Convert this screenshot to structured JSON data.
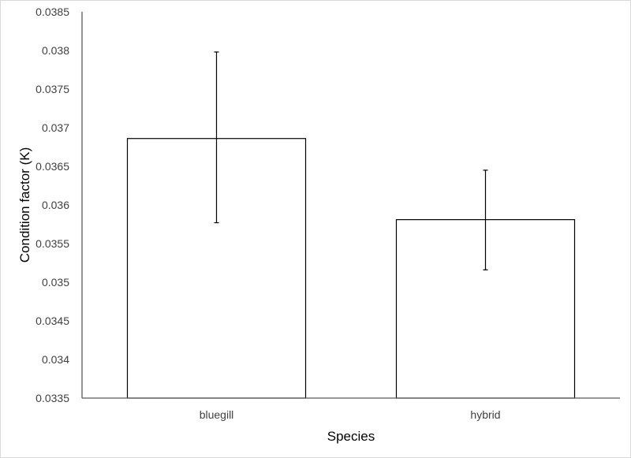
{
  "chart_data": {
    "type": "bar",
    "title": "",
    "xlabel": "Species",
    "ylabel": "Condition factor (K)",
    "categories": [
      "bluegill",
      "hybrid"
    ],
    "values": [
      0.03686,
      0.03581
    ],
    "error_bars": {
      "upper": [
        0.03798,
        0.03645
      ],
      "lower": [
        0.03577,
        0.03516
      ]
    },
    "ylim": [
      0.0335,
      0.0385
    ],
    "yticks": [
      "0.0335",
      "0.034",
      "0.0345",
      "0.035",
      "0.0355",
      "0.036",
      "0.0365",
      "0.037",
      "0.0375",
      "0.038",
      "0.0385"
    ],
    "grid": false,
    "legend": null,
    "bar_fill": "#ffffff",
    "bar_stroke": "#000000"
  }
}
